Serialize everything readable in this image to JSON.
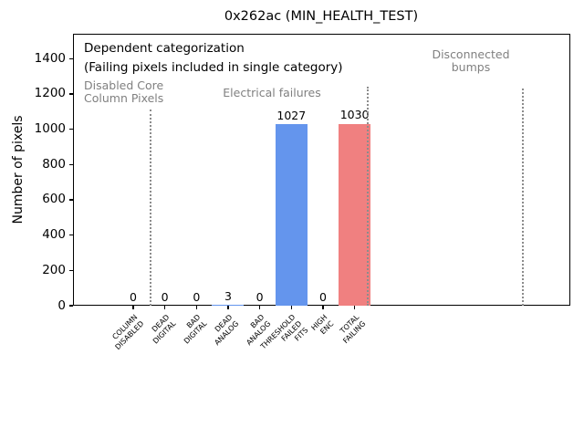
{
  "chart_data": {
    "type": "bar",
    "title": "0x262ac (MIN_HEALTH_TEST)",
    "xlabel": "",
    "ylabel": "Number of pixels",
    "categories": [
      "COLUMN\nDISABLED",
      "DEAD\nDIGITAL",
      "BAD\nDIGITAL",
      "DEAD\nANALOG",
      "BAD\nANALOG",
      "THRESHOLD\nFAILED\nFITS",
      "HIGH\nENC",
      "TOTAL\nFAILING"
    ],
    "values": [
      0,
      0,
      0,
      3,
      0,
      1027,
      0,
      1030
    ],
    "bar_labels": [
      "0",
      "0",
      "0",
      "3",
      "0",
      "1027",
      "0",
      "1030"
    ],
    "bar_colors": [
      "#6495ed",
      "#6495ed",
      "#6495ed",
      "#6495ed",
      "#6495ed",
      "#6495ed",
      "#6495ed",
      "#f08080"
    ],
    "ylim": [
      0,
      1541
    ],
    "yticks": [
      0,
      200,
      400,
      600,
      800,
      1000,
      1200,
      1400
    ],
    "grid": false,
    "legend": null,
    "annotations": {
      "note_lines": [
        "Dependent categorization",
        "(Failing pixels included in single category)"
      ],
      "sections": [
        {
          "label": "Disabled Core\nColumn Pixels",
          "align": "left",
          "x": 92,
          "y": 87
        },
        {
          "label": "Electrical failures",
          "align": "center",
          "x": 298,
          "y": 95
        },
        {
          "label": "Disconnected\nbumps",
          "align": "center",
          "x": 516,
          "y": 53
        }
      ],
      "separators": [
        {
          "x": 165,
          "y_top": 120
        },
        {
          "x": 403,
          "y_top": 95
        },
        {
          "x": 573,
          "y_top": 97
        }
      ]
    },
    "colors": {
      "bar_blue": "#6495ed",
      "bar_red": "#f08080",
      "annotation_gray": "#808080",
      "separator_gray": "#8c8c8c",
      "axes": "#000000"
    }
  }
}
